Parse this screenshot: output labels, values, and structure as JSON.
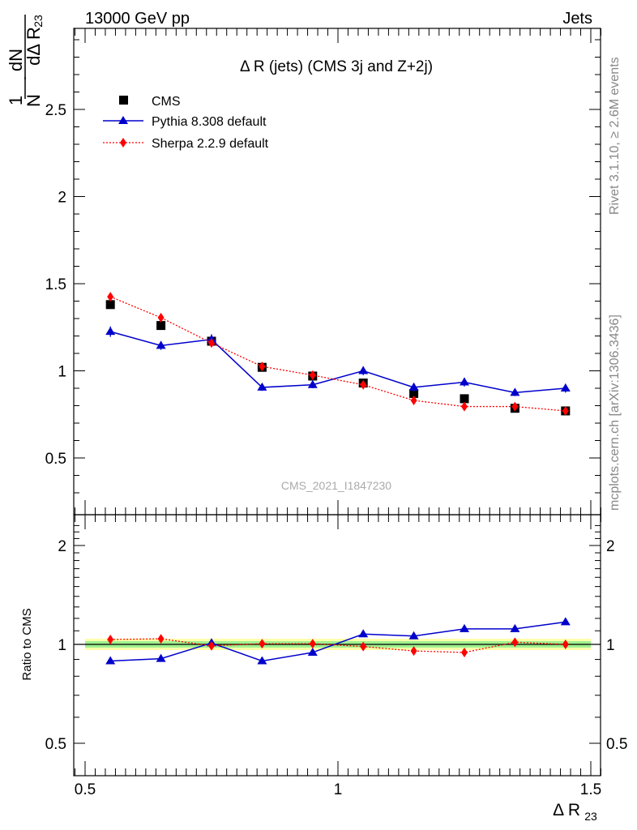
{
  "header": {
    "left": "13000 GeV pp",
    "right": "Jets"
  },
  "side_labels": {
    "rivet": "Rivet 3.1.10, ≥ 2.6M events",
    "mcplots": "mcplots.cern.ch [arXiv:1306.3436]"
  },
  "watermark": "CMS_2021_I1847230",
  "chart_data": [
    {
      "type": "scatter",
      "title": "Δ R (jets) (CMS 3j and Z+2j)",
      "ylabel": "1/N dN/dΔ R23",
      "xlim": [
        0.5,
        1.5
      ],
      "ylim": [
        0.2,
        2.95
      ],
      "yticks": [
        0.5,
        1,
        1.5,
        2,
        2.5
      ],
      "legend_position": "top-left",
      "x": [
        0.55,
        0.65,
        0.75,
        0.85,
        0.95,
        1.05,
        1.15,
        1.25,
        1.35,
        1.45
      ],
      "series": [
        {
          "name": "CMS",
          "marker": "square",
          "color": "#000000",
          "values": [
            1.38,
            1.26,
            1.17,
            1.02,
            0.97,
            0.93,
            0.87,
            0.84,
            0.785,
            0.77
          ]
        },
        {
          "name": "Pythia 8.308 default",
          "marker": "triangle",
          "color": "#0000cc",
          "line": "solid",
          "values": [
            1.225,
            1.145,
            1.18,
            0.905,
            0.92,
            1.0,
            0.905,
            0.935,
            0.875,
            0.9
          ],
          "errors": [
            0.03,
            0.025,
            0.03,
            0.02,
            0.02,
            0.025,
            0.025,
            0.025,
            0.02,
            0.025
          ]
        },
        {
          "name": "Sherpa 2.2.9 default",
          "marker": "diamond",
          "color": "#ff0000",
          "line": "dotted",
          "values": [
            1.425,
            1.305,
            1.16,
            1.025,
            0.975,
            0.92,
            0.83,
            0.795,
            0.795,
            0.77
          ],
          "errors": [
            0.02,
            0.02,
            0.02,
            0.015,
            0.015,
            0.015,
            0.015,
            0.012,
            0.012,
            0.012
          ]
        }
      ]
    },
    {
      "type": "scatter",
      "ylabel": "Ratio to CMS",
      "xlabel": "Δ R23",
      "xlim": [
        0.5,
        1.5
      ],
      "xticks": [
        0.5,
        1,
        1.5
      ],
      "ylim": [
        0.4,
        2.35
      ],
      "yticks": [
        0.5,
        1,
        2
      ],
      "log_scale_y": true,
      "x": [
        0.55,
        0.65,
        0.75,
        0.85,
        0.95,
        1.05,
        1.15,
        1.25,
        1.35,
        1.45
      ],
      "series": [
        {
          "name": "Pythia 8.308 default",
          "marker": "triangle",
          "color": "#0000cc",
          "line": "solid",
          "values": [
            0.89,
            0.905,
            1.01,
            0.89,
            0.945,
            1.075,
            1.06,
            1.115,
            1.115,
            1.17
          ]
        },
        {
          "name": "Sherpa 2.2.9 default",
          "marker": "diamond",
          "color": "#ff0000",
          "line": "dotted",
          "values": [
            1.035,
            1.04,
            0.99,
            1.005,
            1.005,
            0.985,
            0.955,
            0.945,
            1.015,
            1.0
          ]
        }
      ]
    }
  ]
}
